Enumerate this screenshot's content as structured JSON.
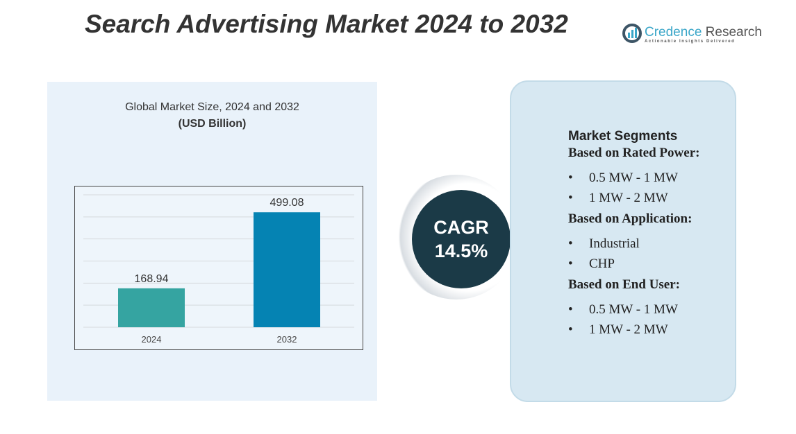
{
  "title": "Search Advertising Market 2024 to 2032",
  "logo": {
    "brand1": "Credence",
    "brand2": "Research",
    "tagline": "Actionable Insights Delivered"
  },
  "chart_data": {
    "type": "bar",
    "title": "Global Market Size, 2024 and 2032",
    "subtitle": "(USD Billion)",
    "categories": [
      "2024",
      "2032"
    ],
    "values": [
      168.94,
      499.08
    ],
    "data_labels": [
      "168.94",
      "499.08"
    ],
    "colors": [
      "#35a4a1",
      "#0583b3"
    ],
    "ylim": [
      0,
      575
    ],
    "grid": true
  },
  "cagr": {
    "label": "CAGR",
    "value": "14.5%"
  },
  "segments": {
    "heading": "Market Segments",
    "groups": [
      {
        "title": "Based on Rated Power:",
        "items": [
          "0.5 MW - 1 MW",
          "1 MW - 2 MW"
        ]
      },
      {
        "title": "Based on Application:",
        "items": [
          "Industrial",
          "CHP"
        ]
      },
      {
        "title": "Based on End User:",
        "items": [
          "0.5 MW - 1 MW",
          "1 MW - 2 MW"
        ]
      }
    ]
  }
}
